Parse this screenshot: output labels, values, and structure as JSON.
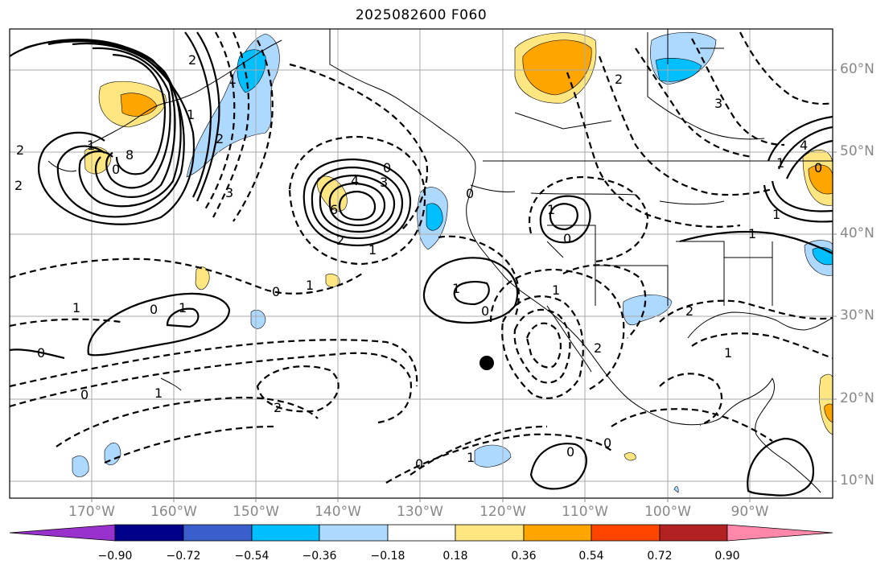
{
  "title": "2025082600 F060",
  "lat_labels": [
    "60°N",
    "50°N",
    "40°N",
    "30°N",
    "20°N",
    "10°N"
  ],
  "lon_labels": [
    "170°W",
    "160°W",
    "150°W",
    "140°W",
    "130°W",
    "120°W",
    "110°W",
    "100°W",
    "90°W"
  ],
  "colorbar": {
    "ticks": [
      "−0.90",
      "−0.72",
      "−0.54",
      "−0.36",
      "−0.18",
      "0.18",
      "0.36",
      "0.54",
      "0.72",
      "0.90"
    ],
    "colors": [
      "#9932cc",
      "#00008b",
      "#3a5fcd",
      "#00bfff",
      "#add8ff",
      "#ffffff",
      "#ffe680",
      "#ffa500",
      "#ff4500",
      "#b22222",
      "#ff88aa"
    ]
  },
  "contour_labels": {
    "l1": "0",
    "l2": "1",
    "l3": "2",
    "l4": "3",
    "l5": "8",
    "l6": "2",
    "l7": "4",
    "l8": "3",
    "l9": "0",
    "l10": "6",
    "l11": "1",
    "l12": "2",
    "l13": "0",
    "l14": "1",
    "l15": "0",
    "l16": "1",
    "l17": "0",
    "l18": "1",
    "l19": "0",
    "l20": "1",
    "l21": "2",
    "l22": "1",
    "l23": "0",
    "l24": "1",
    "l25": "0",
    "l26": "2",
    "l27": "0",
    "l28": "1",
    "l29": "2",
    "l30": "1",
    "l31": "0",
    "l32": "0",
    "l33": "2",
    "l34": "2",
    "l35": "1",
    "l36": "3",
    "l37": "1",
    "l38": "1",
    "l39": "4",
    "l40": "1",
    "l41": "0",
    "l42": "1",
    "l43": "1",
    "l44": "2",
    "l45": "0"
  }
}
